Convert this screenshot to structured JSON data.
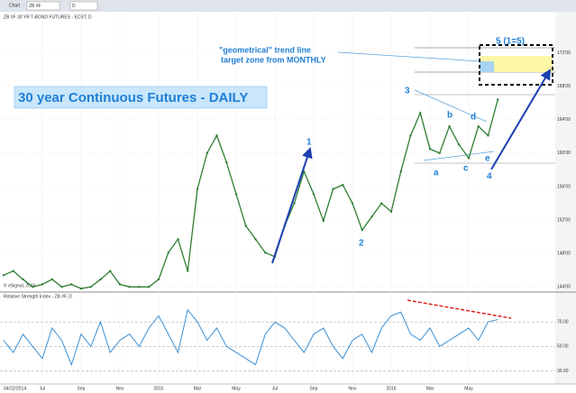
{
  "toolbar": {
    "window": "Chart",
    "symbol": "ZB #F",
    "interval": "D"
  },
  "chart_data": {
    "type": "line",
    "subtitle": "ZB #F 30 YR T-BOND FUTURES - ECBT, D",
    "title": "30 year Continuous Futures - DAILY",
    "copyright": "© eSignal, 2016",
    "start_date": "04/22/2014",
    "categories": [
      null,
      null,
      null,
      null,
      "Jul",
      null,
      null,
      null,
      "Sep",
      null,
      null,
      null,
      "Nov",
      null,
      null,
      null,
      "2015",
      null,
      null,
      null,
      "Mar",
      null,
      null,
      null,
      "May",
      null,
      null,
      null,
      "Jul",
      null,
      null,
      null,
      "Sep",
      null,
      null,
      null,
      "Nov",
      null,
      null,
      null,
      "2016",
      null,
      null,
      null,
      "Mar",
      null,
      null,
      null,
      "May",
      null,
      null,
      null
    ],
    "series": [
      {
        "name": "ZB #F",
        "color": "#2e7d32",
        "values": [
          145.4,
          145.9,
          144.9,
          144.0,
          144.3,
          144.9,
          144.0,
          144.3,
          143.8,
          144.0,
          144.9,
          145.9,
          144.3,
          144.0,
          144.0,
          144.0,
          144.9,
          148.1,
          149.7,
          145.9,
          155.7,
          160.0,
          162.1,
          158.9,
          155.1,
          151.3,
          149.7,
          148.1,
          147.6,
          151.3,
          154.0,
          157.8,
          155.1,
          151.9,
          155.7,
          156.2,
          154.0,
          150.8,
          152.4,
          154.0,
          153.0,
          157.8,
          162.1,
          164.8,
          160.5,
          160.0,
          163.2,
          161.0,
          159.4,
          163.2,
          162.1,
          166.4
        ]
      }
    ],
    "ylim": [
      143.6,
      176.8
    ],
    "yticks": [
      {
        "value": 144,
        "label": "144'00"
      },
      {
        "value": 148,
        "label": "148'00"
      },
      {
        "value": 152,
        "label": "152'00"
      },
      {
        "value": 156,
        "label": "156'00"
      },
      {
        "value": 160,
        "label": "160'00"
      },
      {
        "value": 164,
        "label": "164'00"
      },
      {
        "value": 168,
        "label": "168'00"
      },
      {
        "value": 172,
        "label": "172'00"
      }
    ],
    "grid": true,
    "indicator": {
      "name": "Relative Strength Index - ZB #F, D",
      "color": "#3b8fd4",
      "values": [
        55,
        45,
        60,
        50,
        40,
        65,
        55,
        35,
        60,
        50,
        70,
        45,
        55,
        60,
        50,
        65,
        75,
        60,
        45,
        80,
        70,
        55,
        65,
        50,
        45,
        40,
        35,
        60,
        70,
        65,
        55,
        45,
        60,
        65,
        50,
        40,
        55,
        60,
        45,
        65,
        75,
        78,
        60,
        55,
        65,
        50,
        55,
        60,
        65,
        55,
        70,
        72
      ],
      "ylim": [
        20,
        90
      ],
      "yticks": [
        {
          "value": 30,
          "label": "30.00"
        },
        {
          "value": 50,
          "label": "50.00"
        },
        {
          "value": 70,
          "label": "70.00"
        }
      ]
    },
    "annotations": {
      "target_note_1": "\"geometrical\" trend line",
      "target_note_2": "target zone from MONTHLY",
      "waves": [
        "1",
        "2",
        "3",
        "a",
        "b",
        "c",
        "d",
        "e",
        "4",
        "5 (1=5)"
      ]
    }
  }
}
